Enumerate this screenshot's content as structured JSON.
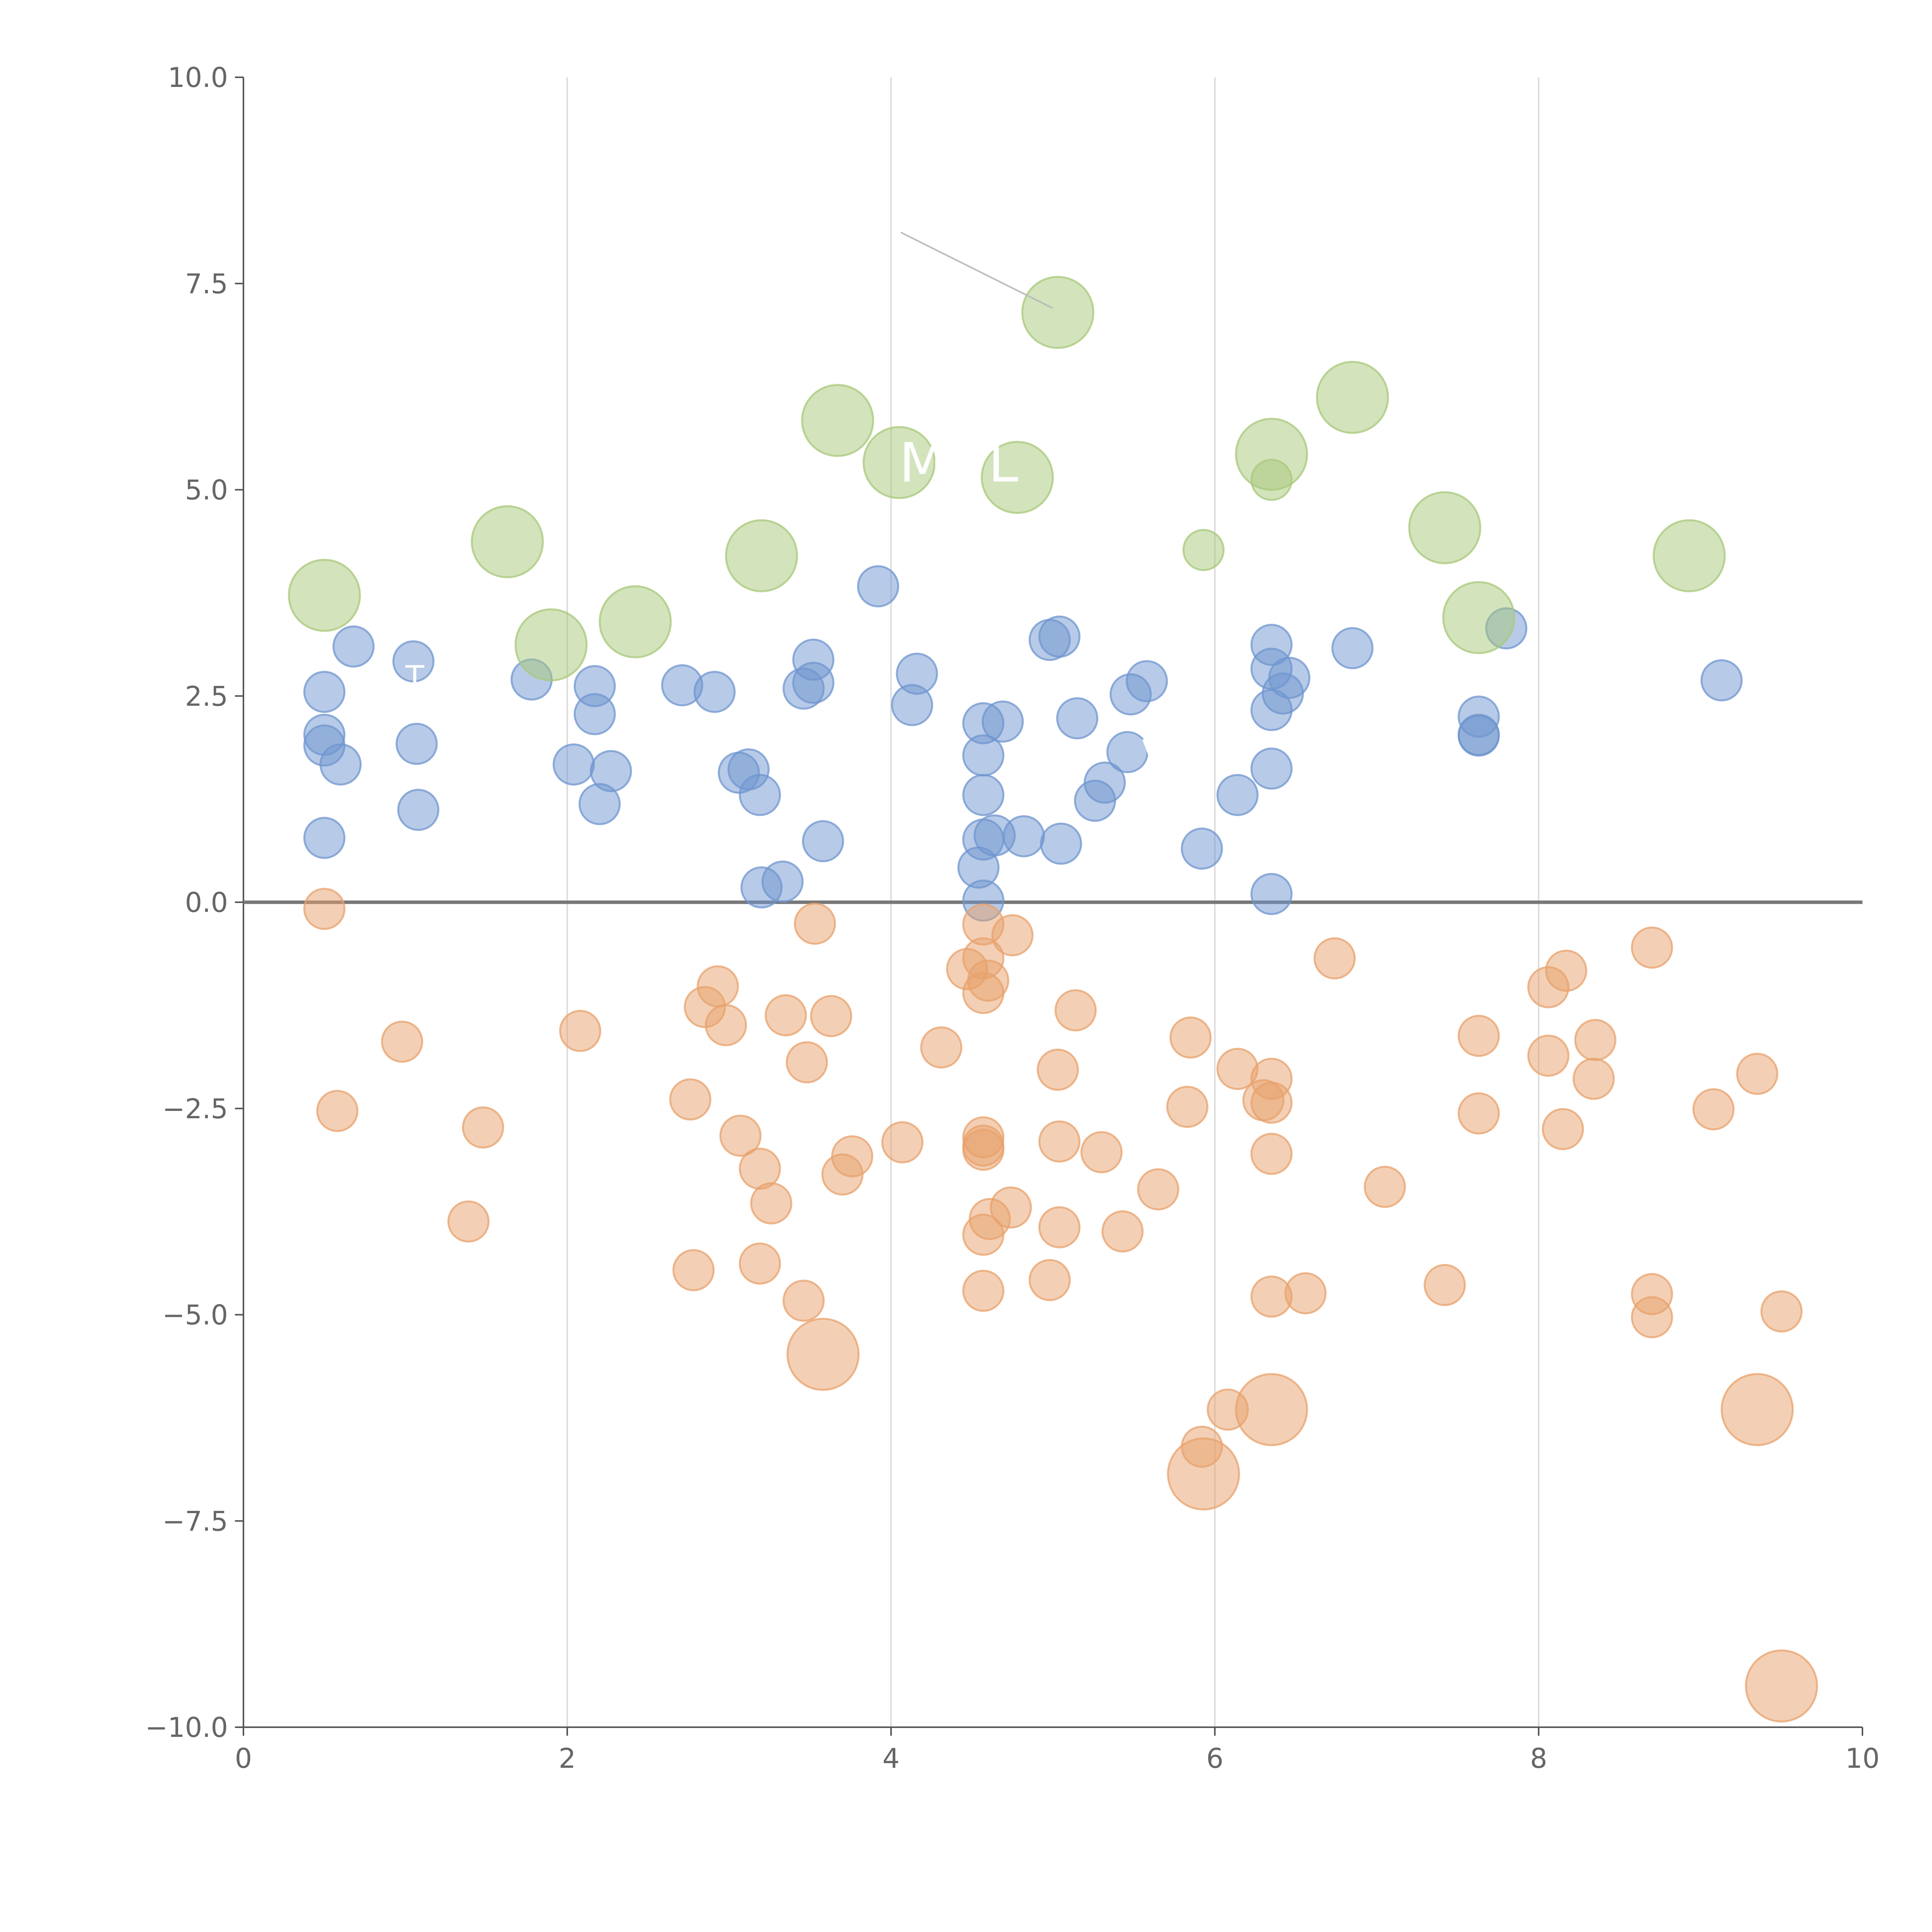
{
  "chart_data": {
    "type": "scatter",
    "title": "",
    "xlabel": "",
    "ylabel": "",
    "xlim": [
      0,
      10
    ],
    "ylim": [
      -10,
      10
    ],
    "x_ticks": [
      "0",
      "2",
      "4",
      "6",
      "8",
      "10"
    ],
    "y_ticks": [
      "−10.0",
      "−7.5",
      "−5.0",
      "−2.5",
      "0.0",
      "2.5",
      "5.0",
      "7.5",
      "10.0"
    ],
    "grid": "vertical",
    "reference_line": {
      "y": 0
    },
    "colors": {
      "blue": "#6f95cf",
      "orange": "#e8a26c",
      "green": "#a8c87a",
      "text": "#666666",
      "grid": "#dddddd"
    },
    "series": [
      {
        "color": "#6f95cf",
        "points": [
          {
            "x": 0.5,
            "y": 2.55
          },
          {
            "x": 0.5,
            "y": 2.03
          },
          {
            "x": 0.5,
            "y": 1.9
          },
          {
            "x": 0.5,
            "y": 0.78
          },
          {
            "x": 0.6,
            "y": 1.67
          },
          {
            "x": 0.68,
            "y": 3.1
          },
          {
            "x": 1.05,
            "y": 2.92
          },
          {
            "x": 1.07,
            "y": 1.92
          },
          {
            "x": 1.08,
            "y": 1.12
          },
          {
            "x": 1.78,
            "y": 2.7
          },
          {
            "x": 2.04,
            "y": 1.67
          },
          {
            "x": 2.17,
            "y": 2.62
          },
          {
            "x": 2.17,
            "y": 2.28
          },
          {
            "x": 2.2,
            "y": 1.19
          },
          {
            "x": 2.27,
            "y": 1.59
          },
          {
            "x": 2.71,
            "y": 2.63
          },
          {
            "x": 2.91,
            "y": 2.55
          },
          {
            "x": 3.06,
            "y": 1.57
          },
          {
            "x": 3.12,
            "y": 1.61
          },
          {
            "x": 3.19,
            "y": 1.3
          },
          {
            "x": 3.2,
            "y": 0.18
          },
          {
            "x": 3.33,
            "y": 0.25
          },
          {
            "x": 3.46,
            "y": 2.59
          },
          {
            "x": 3.52,
            "y": 2.66
          },
          {
            "x": 3.52,
            "y": 2.94
          },
          {
            "x": 3.58,
            "y": 0.74
          },
          {
            "x": 3.92,
            "y": 3.83
          },
          {
            "x": 4.13,
            "y": 2.39
          },
          {
            "x": 4.16,
            "y": 2.77
          },
          {
            "x": 4.54,
            "y": 0.42
          },
          {
            "x": 4.57,
            "y": 2.17
          },
          {
            "x": 4.57,
            "y": 1.78
          },
          {
            "x": 4.57,
            "y": 1.3
          },
          {
            "x": 4.57,
            "y": 0.76
          },
          {
            "x": 4.57,
            "y": 0.02
          },
          {
            "x": 4.64,
            "y": 0.81
          },
          {
            "x": 4.69,
            "y": 2.19
          },
          {
            "x": 4.82,
            "y": 0.8
          },
          {
            "x": 4.98,
            "y": 3.18
          },
          {
            "x": 5.04,
            "y": 3.22
          },
          {
            "x": 5.05,
            "y": 0.71
          },
          {
            "x": 5.15,
            "y": 2.23
          },
          {
            "x": 5.26,
            "y": 1.23
          },
          {
            "x": 5.32,
            "y": 1.45
          },
          {
            "x": 5.46,
            "y": 1.82
          },
          {
            "x": 5.48,
            "y": 2.52
          },
          {
            "x": 5.58,
            "y": 2.68
          },
          {
            "x": 5.92,
            "y": 0.65
          },
          {
            "x": 6.14,
            "y": 1.3
          },
          {
            "x": 6.35,
            "y": 3.12
          },
          {
            "x": 6.35,
            "y": 2.83
          },
          {
            "x": 6.35,
            "y": 2.33
          },
          {
            "x": 6.35,
            "y": 1.62
          },
          {
            "x": 6.35,
            "y": 0.1
          },
          {
            "x": 6.42,
            "y": 2.53
          },
          {
            "x": 6.46,
            "y": 2.72
          },
          {
            "x": 6.85,
            "y": 3.08
          },
          {
            "x": 7.63,
            "y": 2.25
          },
          {
            "x": 7.63,
            "y": 2.03
          },
          {
            "x": 7.63,
            "y": 2.02
          },
          {
            "x": 7.8,
            "y": 3.32
          },
          {
            "x": 9.13,
            "y": 2.69
          }
        ]
      },
      {
        "color": "#e8a26c",
        "points": [
          {
            "x": 0.5,
            "y": -0.08
          },
          {
            "x": 0.58,
            "y": -2.53
          },
          {
            "x": 0.98,
            "y": -1.69
          },
          {
            "x": 1.39,
            "y": -3.87
          },
          {
            "x": 1.48,
            "y": -2.73
          },
          {
            "x": 2.08,
            "y": -1.56
          },
          {
            "x": 2.76,
            "y": -2.39
          },
          {
            "x": 2.78,
            "y": -4.46
          },
          {
            "x": 2.85,
            "y": -1.27
          },
          {
            "x": 2.93,
            "y": -1.02
          },
          {
            "x": 2.98,
            "y": -1.49
          },
          {
            "x": 3.07,
            "y": -2.83
          },
          {
            "x": 3.19,
            "y": -3.23
          },
          {
            "x": 3.19,
            "y": -4.38
          },
          {
            "x": 3.26,
            "y": -3.65
          },
          {
            "x": 3.35,
            "y": -1.37
          },
          {
            "x": 3.46,
            "y": -4.83
          },
          {
            "x": 3.48,
            "y": -1.94
          },
          {
            "x": 3.53,
            "y": -0.26
          },
          {
            "x": 3.63,
            "y": -1.38
          },
          {
            "x": 3.7,
            "y": -3.3
          },
          {
            "x": 3.76,
            "y": -3.08
          },
          {
            "x": 4.07,
            "y": -2.91
          },
          {
            "x": 4.31,
            "y": -1.76
          },
          {
            "x": 4.47,
            "y": -0.81
          },
          {
            "x": 4.57,
            "y": -0.27
          },
          {
            "x": 4.57,
            "y": -0.68
          },
          {
            "x": 4.57,
            "y": -1.1
          },
          {
            "x": 4.57,
            "y": -2.85
          },
          {
            "x": 4.57,
            "y": -2.95
          },
          {
            "x": 4.57,
            "y": -3.0
          },
          {
            "x": 4.57,
            "y": -4.03
          },
          {
            "x": 4.57,
            "y": -4.71
          },
          {
            "x": 4.6,
            "y": -0.95
          },
          {
            "x": 4.61,
            "y": -3.84
          },
          {
            "x": 4.74,
            "y": -3.7
          },
          {
            "x": 4.75,
            "y": -0.4
          },
          {
            "x": 4.98,
            "y": -4.58
          },
          {
            "x": 5.03,
            "y": -2.03
          },
          {
            "x": 5.04,
            "y": -2.9
          },
          {
            "x": 5.04,
            "y": -3.94
          },
          {
            "x": 5.14,
            "y": -1.31
          },
          {
            "x": 5.3,
            "y": -3.03
          },
          {
            "x": 5.43,
            "y": -3.99
          },
          {
            "x": 5.65,
            "y": -3.48
          },
          {
            "x": 5.83,
            "y": -2.48
          },
          {
            "x": 5.85,
            "y": -1.64
          },
          {
            "x": 5.92,
            "y": -6.6
          },
          {
            "x": 6.08,
            "y": -6.15
          },
          {
            "x": 6.14,
            "y": -2.02
          },
          {
            "x": 6.3,
            "y": -2.4
          },
          {
            "x": 6.35,
            "y": -2.14
          },
          {
            "x": 6.35,
            "y": -2.43
          },
          {
            "x": 6.35,
            "y": -3.05
          },
          {
            "x": 6.35,
            "y": -4.78
          },
          {
            "x": 6.56,
            "y": -4.74
          },
          {
            "x": 6.74,
            "y": -0.68
          },
          {
            "x": 7.05,
            "y": -3.45
          },
          {
            "x": 7.42,
            "y": -4.64
          },
          {
            "x": 7.63,
            "y": -1.62
          },
          {
            "x": 7.63,
            "y": -2.56
          },
          {
            "x": 8.06,
            "y": -1.03
          },
          {
            "x": 8.06,
            "y": -1.86
          },
          {
            "x": 8.15,
            "y": -2.75
          },
          {
            "x": 8.17,
            "y": -0.83
          },
          {
            "x": 8.34,
            "y": -2.14
          },
          {
            "x": 8.35,
            "y": -1.67
          },
          {
            "x": 8.7,
            "y": -0.55
          },
          {
            "x": 8.7,
            "y": -4.75
          },
          {
            "x": 8.7,
            "y": -5.03
          },
          {
            "x": 9.08,
            "y": -2.51
          },
          {
            "x": 9.35,
            "y": -2.08
          },
          {
            "x": 9.5,
            "y": -4.96
          },
          {
            "x": 3.58,
            "y": -5.48,
            "size": "large"
          },
          {
            "x": 5.93,
            "y": -6.93,
            "size": "large"
          },
          {
            "x": 6.35,
            "y": -6.15,
            "size": "large"
          },
          {
            "x": 9.35,
            "y": -6.15,
            "size": "large"
          },
          {
            "x": 9.5,
            "y": -9.5,
            "size": "large"
          }
        ]
      },
      {
        "color": "#a8c87a",
        "points": [
          {
            "x": 0.5,
            "y": 3.72,
            "size": "large"
          },
          {
            "x": 1.63,
            "y": 4.37,
            "size": "large"
          },
          {
            "x": 1.9,
            "y": 3.12,
            "size": "large"
          },
          {
            "x": 2.42,
            "y": 3.4,
            "size": "large"
          },
          {
            "x": 3.2,
            "y": 4.2,
            "size": "large"
          },
          {
            "x": 3.67,
            "y": 5.84,
            "size": "large"
          },
          {
            "x": 4.05,
            "y": 5.33,
            "size": "large"
          },
          {
            "x": 4.78,
            "y": 5.15,
            "size": "large"
          },
          {
            "x": 5.03,
            "y": 7.15,
            "size": "large"
          },
          {
            "x": 5.93,
            "y": 4.27
          },
          {
            "x": 6.35,
            "y": 5.43,
            "size": "large"
          },
          {
            "x": 6.35,
            "y": 5.12
          },
          {
            "x": 6.85,
            "y": 6.12,
            "size": "large"
          },
          {
            "x": 7.42,
            "y": 4.54,
            "size": "large"
          },
          {
            "x": 7.63,
            "y": 3.45,
            "size": "large"
          },
          {
            "x": 8.93,
            "y": 4.2,
            "size": "large"
          }
        ]
      }
    ],
    "labels": [
      {
        "text": "M",
        "x": 4.05,
        "y": 5.1,
        "size": "large"
      },
      {
        "text": "L",
        "x": 4.6,
        "y": 5.1,
        "size": "large"
      },
      {
        "text": "T",
        "x": 1.0,
        "y": 2.6
      },
      {
        "text": "V",
        "x": 5.55,
        "y": 1.7
      }
    ],
    "leader_lines": [
      {
        "x1": 4.06,
        "y1": 8.12,
        "x2": 5.0,
        "y2": 7.2,
        "color": "#bbbbbb"
      }
    ]
  }
}
